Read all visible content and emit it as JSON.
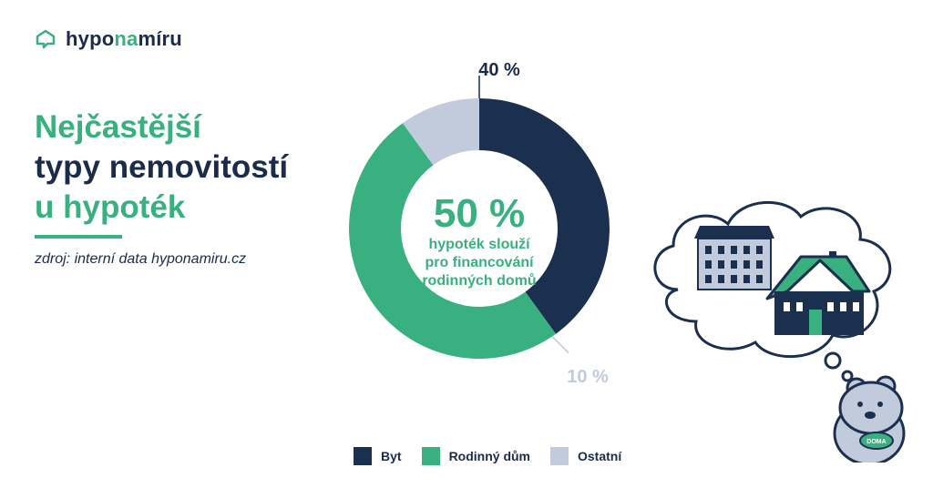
{
  "logo": {
    "part1": "hypo",
    "part2": "na",
    "part3": "míru"
  },
  "heading": {
    "line1": "Nejčastější",
    "line2": "typy nemovitostí",
    "line3": "u hypoték"
  },
  "source": "zdroj: interní data hyponamiru.cz",
  "colors": {
    "byt": "#1b2f4e",
    "dum": "#38b07f",
    "ostatni": "#c1cbdc",
    "text": "#1b2b4b"
  },
  "chart_data": {
    "type": "pie",
    "variant": "donut",
    "categories": [
      "Byt",
      "Rodinný dům",
      "Ostatní"
    ],
    "values": [
      40,
      50,
      10
    ],
    "data_labels": [
      "40 %",
      "",
      "10 %"
    ],
    "center": {
      "value": "50 %",
      "line1": "hypoték slouží",
      "line2": "pro financování",
      "line3": "rodinných domů"
    },
    "legend": "bottom"
  },
  "legend": [
    {
      "label": "Byt",
      "color": "#1b2f4e"
    },
    {
      "label": "Rodinný dům",
      "color": "#38b07f"
    },
    {
      "label": "Ostatní",
      "color": "#c1cbdc"
    }
  ],
  "illustration": {
    "badge_text": "DOMA"
  }
}
